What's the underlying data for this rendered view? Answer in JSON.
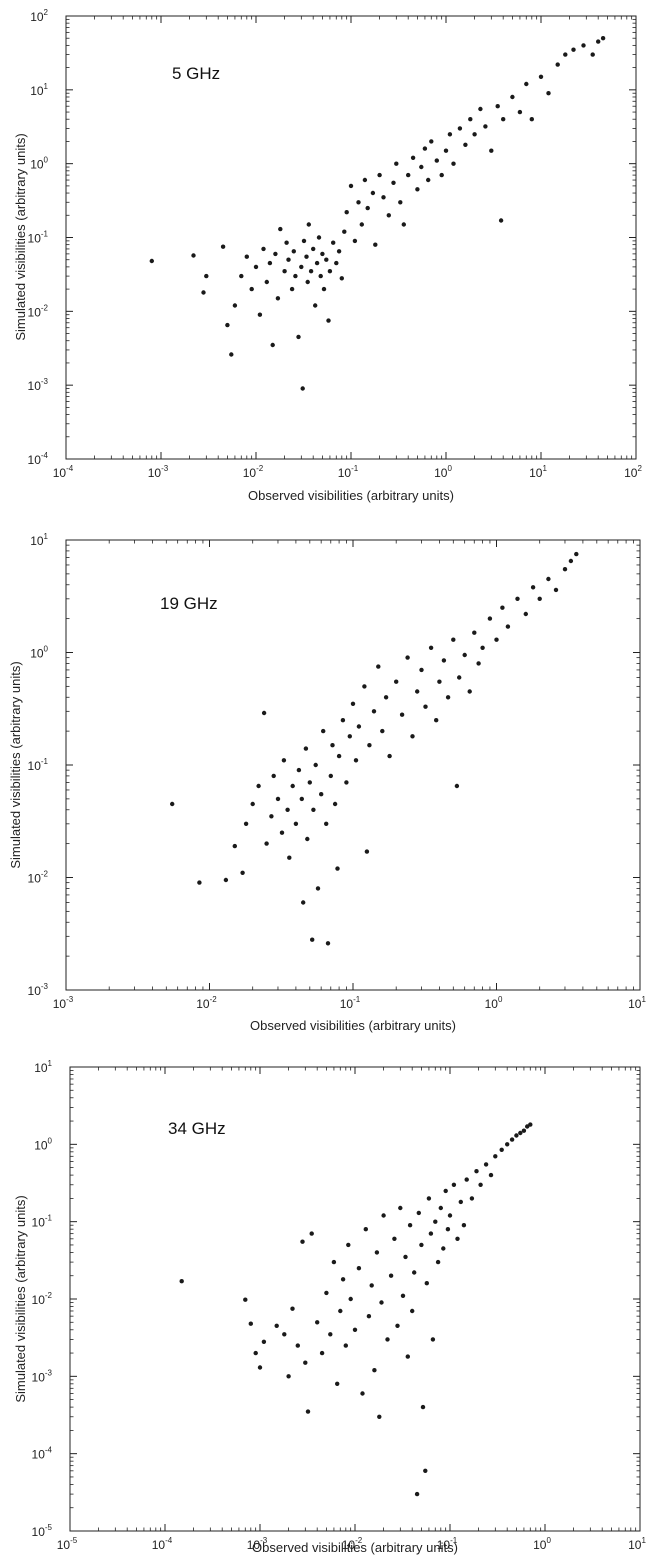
{
  "chart_data": [
    {
      "type": "scatter",
      "title": "5 GHz",
      "xlabel": "Observed visibilities (arbitrary units)",
      "ylabel": "Simulated visibilities (arbitrary units)",
      "xscale": "log",
      "yscale": "log",
      "xlim": [
        0.0001,
        100
      ],
      "ylim": [
        0.0001,
        100
      ],
      "xticks": [
        "10-4",
        "10-3",
        "10-2",
        "10-1",
        "100",
        "101",
        "102"
      ],
      "yticks": [
        "10-4",
        "10-3",
        "10-2",
        "10-1",
        "100",
        "101",
        "102"
      ],
      "grid": false,
      "points": [
        [
          0.0008,
          0.048
        ],
        [
          0.0022,
          0.057
        ],
        [
          0.0028,
          0.018
        ],
        [
          0.003,
          0.03
        ],
        [
          0.0045,
          0.075
        ],
        [
          0.005,
          0.0065
        ],
        [
          0.0055,
          0.0026
        ],
        [
          0.006,
          0.012
        ],
        [
          0.007,
          0.03
        ],
        [
          0.008,
          0.055
        ],
        [
          0.009,
          0.02
        ],
        [
          0.01,
          0.04
        ],
        [
          0.011,
          0.009
        ],
        [
          0.012,
          0.07
        ],
        [
          0.013,
          0.025
        ],
        [
          0.014,
          0.045
        ],
        [
          0.015,
          0.0035
        ],
        [
          0.016,
          0.06
        ],
        [
          0.017,
          0.015
        ],
        [
          0.018,
          0.13
        ],
        [
          0.02,
          0.035
        ],
        [
          0.021,
          0.085
        ],
        [
          0.022,
          0.05
        ],
        [
          0.024,
          0.02
        ],
        [
          0.025,
          0.065
        ],
        [
          0.026,
          0.03
        ],
        [
          0.028,
          0.0045
        ],
        [
          0.03,
          0.04
        ],
        [
          0.031,
          0.0009
        ],
        [
          0.032,
          0.09
        ],
        [
          0.034,
          0.055
        ],
        [
          0.035,
          0.025
        ],
        [
          0.036,
          0.15
        ],
        [
          0.038,
          0.035
        ],
        [
          0.04,
          0.07
        ],
        [
          0.042,
          0.012
        ],
        [
          0.044,
          0.045
        ],
        [
          0.046,
          0.1
        ],
        [
          0.048,
          0.03
        ],
        [
          0.05,
          0.06
        ],
        [
          0.052,
          0.02
        ],
        [
          0.055,
          0.05
        ],
        [
          0.058,
          0.0075
        ],
        [
          0.06,
          0.035
        ],
        [
          0.065,
          0.085
        ],
        [
          0.07,
          0.045
        ],
        [
          0.075,
          0.065
        ],
        [
          0.08,
          0.028
        ],
        [
          0.085,
          0.12
        ],
        [
          0.09,
          0.22
        ],
        [
          0.1,
          0.5
        ],
        [
          0.11,
          0.09
        ],
        [
          0.12,
          0.3
        ],
        [
          0.13,
          0.15
        ],
        [
          0.14,
          0.6
        ],
        [
          0.15,
          0.25
        ],
        [
          0.17,
          0.4
        ],
        [
          0.18,
          0.08
        ],
        [
          0.2,
          0.7
        ],
        [
          0.22,
          0.35
        ],
        [
          0.25,
          0.2
        ],
        [
          0.28,
          0.55
        ],
        [
          0.3,
          1.0
        ],
        [
          0.33,
          0.3
        ],
        [
          0.36,
          0.15
        ],
        [
          0.4,
          0.7
        ],
        [
          0.45,
          1.2
        ],
        [
          0.5,
          0.45
        ],
        [
          0.55,
          0.9
        ],
        [
          0.6,
          1.6
        ],
        [
          0.65,
          0.6
        ],
        [
          0.7,
          2.0
        ],
        [
          0.8,
          1.1
        ],
        [
          0.9,
          0.7
        ],
        [
          1.0,
          1.5
        ],
        [
          1.1,
          2.5
        ],
        [
          1.2,
          1.0
        ],
        [
          1.4,
          3.0
        ],
        [
          1.6,
          1.8
        ],
        [
          1.8,
          4.0
        ],
        [
          2.0,
          2.5
        ],
        [
          2.3,
          5.5
        ],
        [
          2.6,
          3.2
        ],
        [
          3.0,
          1.5
        ],
        [
          3.5,
          6.0
        ],
        [
          3.8,
          0.17
        ],
        [
          4.0,
          4.0
        ],
        [
          5.0,
          8.0
        ],
        [
          6.0,
          5.0
        ],
        [
          7.0,
          12.0
        ],
        [
          8.0,
          4.0
        ],
        [
          10.0,
          15.0
        ],
        [
          12.0,
          9.0
        ],
        [
          15.0,
          22.0
        ],
        [
          18.0,
          30.0
        ],
        [
          22.0,
          35.0
        ],
        [
          28.0,
          40.0
        ],
        [
          35.0,
          30.0
        ],
        [
          40.0,
          45.0
        ],
        [
          45.0,
          50.0
        ]
      ]
    },
    {
      "type": "scatter",
      "title": "19 GHz",
      "xlabel": "Observed visibilities (arbitrary units)",
      "ylabel": "Simulated visibilities (arbitrary units)",
      "xscale": "log",
      "yscale": "log",
      "xlim": [
        0.001,
        10
      ],
      "ylim": [
        0.001,
        10
      ],
      "xticks": [
        "10-3",
        "10-2",
        "10-1",
        "100",
        "101"
      ],
      "yticks": [
        "10-3",
        "10-2",
        "10-1",
        "100",
        "101"
      ],
      "grid": false,
      "points": [
        [
          0.0055,
          0.045
        ],
        [
          0.0085,
          0.009
        ],
        [
          0.013,
          0.0095
        ],
        [
          0.015,
          0.019
        ],
        [
          0.017,
          0.011
        ],
        [
          0.018,
          0.03
        ],
        [
          0.02,
          0.045
        ],
        [
          0.022,
          0.065
        ],
        [
          0.024,
          0.29
        ],
        [
          0.025,
          0.02
        ],
        [
          0.027,
          0.035
        ],
        [
          0.028,
          0.08
        ],
        [
          0.03,
          0.05
        ],
        [
          0.032,
          0.025
        ],
        [
          0.033,
          0.11
        ],
        [
          0.035,
          0.04
        ],
        [
          0.036,
          0.015
        ],
        [
          0.038,
          0.065
        ],
        [
          0.04,
          0.03
        ],
        [
          0.042,
          0.09
        ],
        [
          0.044,
          0.05
        ],
        [
          0.045,
          0.006
        ],
        [
          0.047,
          0.14
        ],
        [
          0.048,
          0.022
        ],
        [
          0.05,
          0.07
        ],
        [
          0.052,
          0.0028
        ],
        [
          0.053,
          0.04
        ],
        [
          0.055,
          0.1
        ],
        [
          0.057,
          0.008
        ],
        [
          0.06,
          0.055
        ],
        [
          0.062,
          0.2
        ],
        [
          0.065,
          0.03
        ],
        [
          0.067,
          0.0026
        ],
        [
          0.07,
          0.08
        ],
        [
          0.072,
          0.15
        ],
        [
          0.075,
          0.045
        ],
        [
          0.078,
          0.012
        ],
        [
          0.08,
          0.12
        ],
        [
          0.085,
          0.25
        ],
        [
          0.09,
          0.07
        ],
        [
          0.095,
          0.18
        ],
        [
          0.1,
          0.35
        ],
        [
          0.105,
          0.11
        ],
        [
          0.11,
          0.22
        ],
        [
          0.12,
          0.5
        ],
        [
          0.125,
          0.017
        ],
        [
          0.13,
          0.15
        ],
        [
          0.14,
          0.3
        ],
        [
          0.15,
          0.75
        ],
        [
          0.16,
          0.2
        ],
        [
          0.17,
          0.4
        ],
        [
          0.18,
          0.12
        ],
        [
          0.2,
          0.55
        ],
        [
          0.22,
          0.28
        ],
        [
          0.24,
          0.9
        ],
        [
          0.26,
          0.18
        ],
        [
          0.28,
          0.45
        ],
        [
          0.3,
          0.7
        ],
        [
          0.32,
          0.33
        ],
        [
          0.35,
          1.1
        ],
        [
          0.38,
          0.25
        ],
        [
          0.4,
          0.55
        ],
        [
          0.43,
          0.85
        ],
        [
          0.46,
          0.4
        ],
        [
          0.5,
          1.3
        ],
        [
          0.53,
          0.065
        ],
        [
          0.55,
          0.6
        ],
        [
          0.6,
          0.95
        ],
        [
          0.65,
          0.45
        ],
        [
          0.7,
          1.5
        ],
        [
          0.75,
          0.8
        ],
        [
          0.8,
          1.1
        ],
        [
          0.9,
          2.0
        ],
        [
          1.0,
          1.3
        ],
        [
          1.1,
          2.5
        ],
        [
          1.2,
          1.7
        ],
        [
          1.4,
          3.0
        ],
        [
          1.6,
          2.2
        ],
        [
          1.8,
          3.8
        ],
        [
          2.0,
          3.0
        ],
        [
          2.3,
          4.5
        ],
        [
          2.6,
          3.6
        ],
        [
          3.0,
          5.5
        ],
        [
          3.3,
          6.5
        ],
        [
          3.6,
          7.5
        ]
      ]
    },
    {
      "type": "scatter",
      "title": "34 GHz",
      "xlabel": "Observed visibilities (arbitrary units)",
      "ylabel": "Simulated visibilities (arbitrary units)",
      "xscale": "log",
      "yscale": "log",
      "xlim": [
        1e-05,
        10
      ],
      "ylim": [
        1e-05,
        10
      ],
      "xticks": [
        "10-5",
        "10-4",
        "10-3",
        "10-2",
        "10-1",
        "100",
        "101"
      ],
      "yticks": [
        "10-5",
        "10-4",
        "10-3",
        "10-2",
        "10-1",
        "100",
        "101"
      ],
      "grid": false,
      "points": [
        [
          0.00015,
          0.017
        ],
        [
          0.0007,
          0.0098
        ],
        [
          0.0008,
          0.0048
        ],
        [
          0.0009,
          0.002
        ],
        [
          0.001,
          0.0013
        ],
        [
          0.0011,
          0.0028
        ],
        [
          0.0015,
          0.0045
        ],
        [
          0.0018,
          0.0035
        ],
        [
          0.002,
          0.001
        ],
        [
          0.0022,
          0.0075
        ],
        [
          0.0025,
          0.0025
        ],
        [
          0.0028,
          0.055
        ],
        [
          0.003,
          0.0015
        ],
        [
          0.0032,
          0.00035
        ],
        [
          0.0035,
          0.07
        ],
        [
          0.004,
          0.005
        ],
        [
          0.0045,
          0.002
        ],
        [
          0.005,
          0.012
        ],
        [
          0.0055,
          0.0035
        ],
        [
          0.006,
          0.03
        ],
        [
          0.0065,
          0.0008
        ],
        [
          0.007,
          0.007
        ],
        [
          0.0075,
          0.018
        ],
        [
          0.008,
          0.0025
        ],
        [
          0.0085,
          0.05
        ],
        [
          0.009,
          0.01
        ],
        [
          0.01,
          0.004
        ],
        [
          0.011,
          0.025
        ],
        [
          0.012,
          0.0006
        ],
        [
          0.013,
          0.08
        ],
        [
          0.014,
          0.006
        ],
        [
          0.015,
          0.015
        ],
        [
          0.016,
          0.0012
        ],
        [
          0.017,
          0.04
        ],
        [
          0.018,
          0.0003
        ],
        [
          0.019,
          0.009
        ],
        [
          0.02,
          0.12
        ],
        [
          0.022,
          0.003
        ],
        [
          0.024,
          0.02
        ],
        [
          0.026,
          0.06
        ],
        [
          0.028,
          0.0045
        ],
        [
          0.03,
          0.15
        ],
        [
          0.032,
          0.011
        ],
        [
          0.034,
          0.035
        ],
        [
          0.036,
          0.0018
        ],
        [
          0.038,
          0.09
        ],
        [
          0.04,
          0.007
        ],
        [
          0.042,
          0.022
        ],
        [
          0.045,
          3e-05
        ],
        [
          0.047,
          0.13
        ],
        [
          0.05,
          0.05
        ],
        [
          0.052,
          0.0004
        ],
        [
          0.055,
          6e-05
        ],
        [
          0.057,
          0.016
        ],
        [
          0.06,
          0.2
        ],
        [
          0.063,
          0.07
        ],
        [
          0.066,
          0.003
        ],
        [
          0.07,
          0.1
        ],
        [
          0.075,
          0.03
        ],
        [
          0.08,
          0.15
        ],
        [
          0.085,
          0.045
        ],
        [
          0.09,
          0.25
        ],
        [
          0.095,
          0.08
        ],
        [
          0.1,
          0.12
        ],
        [
          0.11,
          0.3
        ],
        [
          0.12,
          0.06
        ],
        [
          0.13,
          0.18
        ],
        [
          0.14,
          0.09
        ],
        [
          0.15,
          0.35
        ],
        [
          0.17,
          0.2
        ],
        [
          0.19,
          0.45
        ],
        [
          0.21,
          0.3
        ],
        [
          0.24,
          0.55
        ],
        [
          0.27,
          0.4
        ],
        [
          0.3,
          0.7
        ],
        [
          0.35,
          0.85
        ],
        [
          0.4,
          1.0
        ],
        [
          0.45,
          1.15
        ],
        [
          0.5,
          1.3
        ],
        [
          0.55,
          1.4
        ],
        [
          0.6,
          1.5
        ],
        [
          0.65,
          1.7
        ],
        [
          0.7,
          1.8
        ]
      ]
    }
  ]
}
